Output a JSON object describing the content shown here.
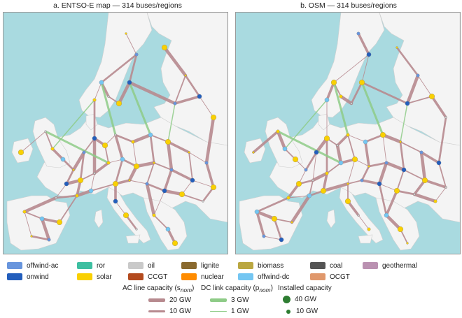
{
  "panels": [
    {
      "title": "a. ENTSO-E map — 314 buses/regions"
    },
    {
      "title": "b. OSM — 314 buses/regions"
    }
  ],
  "legend": {
    "carriers": [
      {
        "label": "offwind-ac",
        "color": "#6895dd"
      },
      {
        "label": "onwind",
        "color": "#235ebc"
      },
      {
        "label": "ror",
        "color": "#3dbfa1"
      },
      {
        "label": "solar",
        "color": "#f9d002"
      },
      {
        "label": "oil",
        "color": "#c9c9c9"
      },
      {
        "label": "CCGT",
        "color": "#b34a1e"
      },
      {
        "label": "lignite",
        "color": "#8a6a2f"
      },
      {
        "label": "nuclear",
        "color": "#ff8c00"
      },
      {
        "label": "biomass",
        "color": "#baa741"
      },
      {
        "label": "offwind-dc",
        "color": "#74c6f2"
      },
      {
        "label": "coal",
        "color": "#545454"
      },
      {
        "label": "OCGT",
        "color": "#e0986c"
      },
      {
        "label": "geothermal",
        "color": "#ba91b1"
      }
    ],
    "ac_line": {
      "title": "AC line capacity (s",
      "title_sub": "nom",
      "items": [
        {
          "label": "20 GW",
          "value": 20
        },
        {
          "label": "10 GW",
          "value": 10
        }
      ],
      "color": "#b78a8f"
    },
    "dc_link": {
      "title": "DC link capacity (p",
      "title_sub": "nom",
      "items": [
        {
          "label": "3 GW",
          "value": 3
        },
        {
          "label": "1 GW",
          "value": 1
        }
      ],
      "color": "#8ecb87"
    },
    "installed": {
      "title": "Installed capacity",
      "items": [
        {
          "label": "40 GW",
          "value": 40
        },
        {
          "label": "10 GW",
          "value": 10
        }
      ],
      "color": "#2e7d32"
    }
  },
  "colors": {
    "sea": "#a9dae0",
    "land": "#f4f4f4",
    "ac": "#b78a8f",
    "dc": "#8ecb87"
  }
}
